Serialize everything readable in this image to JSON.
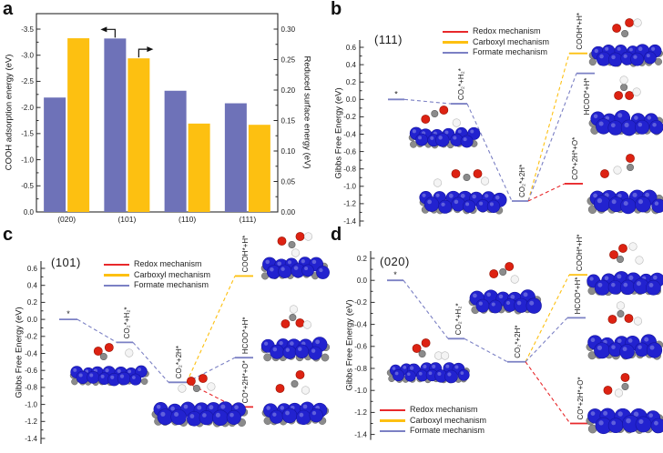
{
  "colors": {
    "redox": "#e8282b",
    "carboxyl": "#fdc011",
    "formate": "#7b80c4",
    "bar_blue": "#6e72b8",
    "bar_yellow": "#fdc011",
    "axis": "#2a2a2a",
    "background": "#ffffff",
    "atom_blue": "#2222cf",
    "atom_red": "#dd2212",
    "atom_gray": "#8b8b8b",
    "atom_white": "#f4f4f4"
  },
  "panels": {
    "a": {
      "letter": "a"
    },
    "b": {
      "letter": "b"
    },
    "c": {
      "letter": "c"
    },
    "d": {
      "letter": "d"
    }
  },
  "legend": {
    "entries": [
      {
        "label": "Redox mechanism",
        "color_key": "redox",
        "color": "#e8282b"
      },
      {
        "label": "Carboxyl mechanism",
        "color_key": "carboxyl",
        "color": "#fdc011"
      },
      {
        "label": "Formate mechanism",
        "color_key": "formate",
        "color": "#7b80c4"
      }
    ]
  },
  "chart_data": [
    {
      "id": "a",
      "type": "bar",
      "categories": [
        "(020)",
        "(101)",
        "(110)",
        "(111)"
      ],
      "series": [
        {
          "name": "COOH adsorption energy (eV)",
          "axis": "left",
          "color_key": "bar_blue",
          "values": [
            -2.19,
            -3.32,
            -2.32,
            -2.08
          ]
        },
        {
          "name": "Reduced surface energy (eV)",
          "axis": "right",
          "color_key": "bar_yellow",
          "values": [
            0.285,
            0.252,
            0.145,
            0.143
          ]
        }
      ],
      "left_axis": {
        "label": "COOH adsorption energy (eV)",
        "min": 0.0,
        "max": -3.5,
        "tick_step": 0.5,
        "inverted": true,
        "tick_labels": [
          "-3.5",
          "-3.0",
          "-2.5",
          "-2.0",
          "-1.5",
          "-1.0",
          "-0.5",
          "0.0"
        ]
      },
      "right_axis": {
        "label": "Reduced surface energy (eV)",
        "min": 0.0,
        "max": 0.3,
        "tick_step": 0.05,
        "tick_labels": [
          "0.30",
          "0.25",
          "0.20",
          "0.15",
          "0.10",
          "0.05",
          "0.00"
        ]
      },
      "annotations": [
        {
          "type": "axis-arrow",
          "direction": "left",
          "series": "COOH adsorption energy (eV)",
          "category": "(101)"
        },
        {
          "type": "axis-arrow",
          "direction": "right",
          "series": "Reduced surface energy (eV)",
          "category": "(101)"
        }
      ]
    },
    {
      "id": "b",
      "type": "line",
      "subtype": "reaction_energy_diagram",
      "surface": "(111)",
      "ylabel": "Gibbs Free Energy (eV)",
      "ylim": [
        -1.4,
        0.6
      ],
      "ytick_step": 0.2,
      "ytick_labels": [
        "0.6",
        "0.4",
        "0.2",
        "0.0",
        "-0.2",
        "-0.4",
        "-0.6",
        "-0.8",
        "-1.0",
        "-1.2",
        "-1.4"
      ],
      "legend_position": "top-center",
      "levels": [
        {
          "label": "*",
          "energy": 0.0,
          "mechanism": "formate"
        },
        {
          "label": "CO₂*+H₂*",
          "energy": -0.05,
          "mechanism": "formate"
        },
        {
          "label": "CO₂*+2H*",
          "energy": -1.17,
          "mechanism": "formate"
        },
        {
          "label": "COOH*+H*",
          "energy": 0.53,
          "mechanism": "carboxyl"
        },
        {
          "label": "HCOO*+H*",
          "energy": 0.3,
          "mechanism": "formate"
        },
        {
          "label": "CO*+2H*+O*",
          "energy": -0.97,
          "mechanism": "redox"
        }
      ],
      "connections": [
        [
          0,
          1
        ],
        [
          1,
          2
        ],
        [
          2,
          3
        ],
        [
          2,
          4
        ],
        [
          2,
          5
        ]
      ],
      "structures": [
        "co2-h2-adsorbed-slab",
        "co2-2h-adsorbed-slab",
        "cooh-h-slab",
        "hcoo-h-slab",
        "co-2h-o-slab"
      ]
    },
    {
      "id": "c",
      "type": "line",
      "subtype": "reaction_energy_diagram",
      "surface": "(101)",
      "ylabel": "Gibbs Free Energy (eV)",
      "ylim": [
        -1.4,
        0.6
      ],
      "ytick_step": 0.2,
      "ytick_labels": [
        "0.6",
        "0.4",
        "0.2",
        "0.0",
        "-0.2",
        "-0.4",
        "-0.6",
        "-0.8",
        "-1.0",
        "-1.2",
        "-1.4"
      ],
      "legend_position": "top-center",
      "levels": [
        {
          "label": "*",
          "energy": 0.0,
          "mechanism": "formate"
        },
        {
          "label": "CO₂*+H₂*",
          "energy": -0.27,
          "mechanism": "formate"
        },
        {
          "label": "CO₂*+2H*",
          "energy": -0.74,
          "mechanism": "formate"
        },
        {
          "label": "COOH*+H*",
          "energy": 0.51,
          "mechanism": "carboxyl"
        },
        {
          "label": "HCOO*+H*",
          "energy": -0.45,
          "mechanism": "formate"
        },
        {
          "label": "CO*+2H*+O*",
          "energy": -1.03,
          "mechanism": "redox"
        }
      ],
      "connections": [
        [
          0,
          1
        ],
        [
          1,
          2
        ],
        [
          2,
          3
        ],
        [
          2,
          4
        ],
        [
          2,
          5
        ]
      ],
      "structures": [
        "co2-h2-adsorbed-slab",
        "co2-2h-adsorbed-slab",
        "cooh-h-slab",
        "hcoo-h-slab",
        "co-2h-o-slab"
      ]
    },
    {
      "id": "d",
      "type": "line",
      "subtype": "reaction_energy_diagram",
      "surface": "(020)",
      "ylabel": "Gibbs Free Energy (eV)",
      "ylim": [
        -1.4,
        0.2
      ],
      "ytick_step": 0.2,
      "ytick_labels": [
        "0.2",
        "0.0",
        "-0.2",
        "-0.4",
        "-0.6",
        "-0.8",
        "-1.0",
        "-1.2",
        "-1.4"
      ],
      "legend_position": "bottom-left",
      "levels": [
        {
          "label": "*",
          "energy": 0.0,
          "mechanism": "formate"
        },
        {
          "label": "CO₂*+H₂*",
          "energy": -0.53,
          "mechanism": "formate"
        },
        {
          "label": "CO₂*+2H*",
          "energy": -0.74,
          "mechanism": "formate"
        },
        {
          "label": "COOH*+H*",
          "energy": 0.05,
          "mechanism": "carboxyl"
        },
        {
          "label": "HCOO*+H*",
          "energy": -0.34,
          "mechanism": "formate"
        },
        {
          "label": "CO*+2H*+O*",
          "energy": -1.3,
          "mechanism": "redox"
        }
      ],
      "connections": [
        [
          0,
          1
        ],
        [
          1,
          2
        ],
        [
          2,
          3
        ],
        [
          2,
          4
        ],
        [
          2,
          5
        ]
      ],
      "structures": [
        "co2-h2-adsorbed-slab",
        "co2-2h-adsorbed-slab",
        "cooh-h-slab",
        "hcoo-h-slab",
        "co-2h-o-slab"
      ]
    }
  ]
}
